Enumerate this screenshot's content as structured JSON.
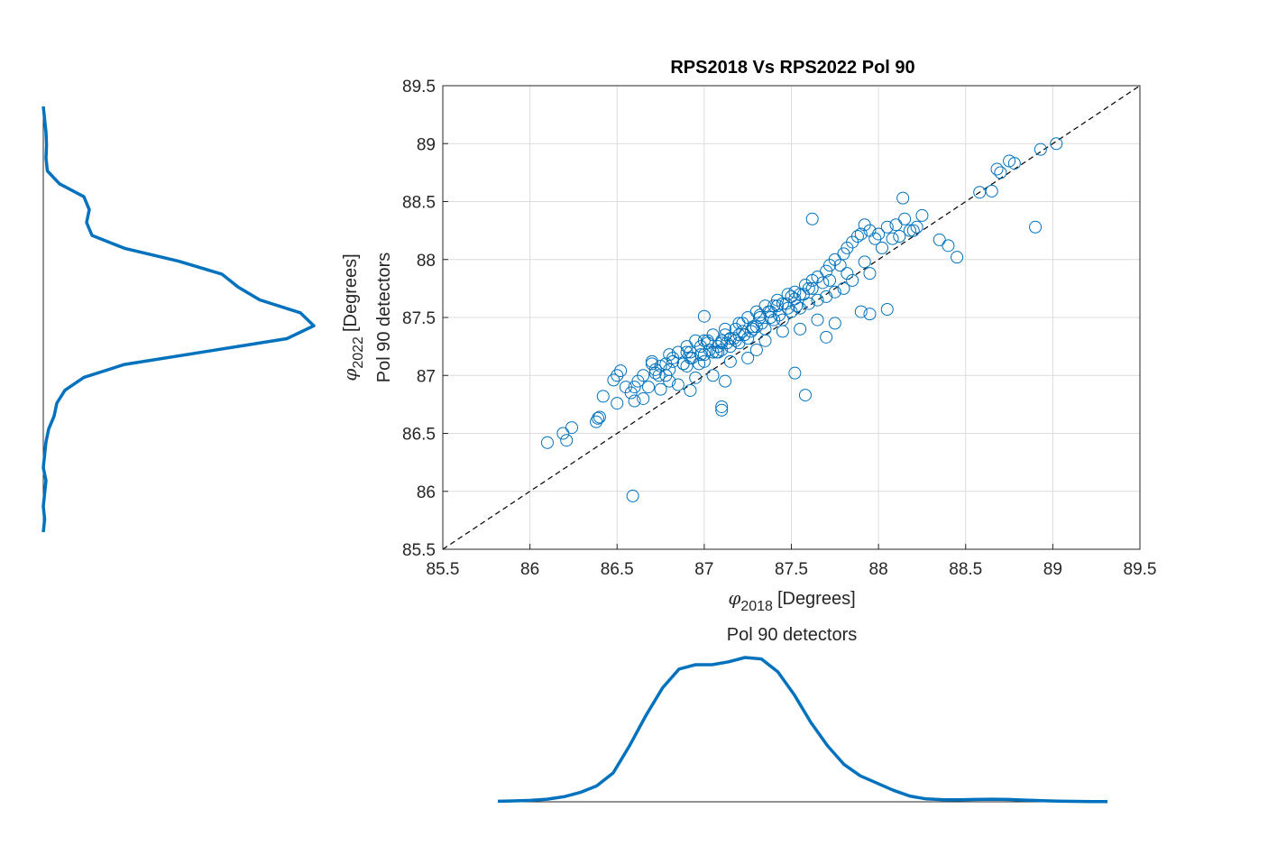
{
  "chart_data": [
    {
      "type": "scatter",
      "title": "RPS2018 Vs RPS2022 Pol 90",
      "xlabel": {
        "symbol": "φ",
        "subscript": "2018",
        "unit": "[Degrees]"
      },
      "ylabel": {
        "symbol": "φ",
        "subscript": "2022",
        "unit": "[Degrees]",
        "line2": "Pol 90 detectors"
      },
      "xlim": [
        85.5,
        89.5
      ],
      "ylim": [
        85.5,
        89.5
      ],
      "xticks": [
        "85.5",
        "86",
        "86.5",
        "87",
        "87.5",
        "88",
        "88.5",
        "89",
        "89.5"
      ],
      "yticks": [
        "85.5",
        "86",
        "86.5",
        "87",
        "87.5",
        "88",
        "88.5",
        "89",
        "89.5"
      ],
      "grid": true,
      "marker": "open-circle",
      "color": "#0072BD",
      "reference_line": {
        "style": "dashed",
        "color": "#000000",
        "x": [
          85.5,
          89.5
        ],
        "y": [
          85.5,
          89.5
        ]
      },
      "points_x": [
        86.1,
        86.19,
        86.21,
        86.24,
        86.38,
        86.39,
        86.4,
        86.42,
        86.48,
        86.5,
        86.5,
        86.52,
        86.55,
        86.58,
        86.6,
        86.62,
        86.65,
        86.68,
        86.7,
        86.72,
        86.74,
        86.75,
        86.78,
        86.8,
        86.82,
        86.85,
        86.88,
        86.9,
        86.92,
        86.95,
        86.98,
        87.0,
        87.02,
        87.05,
        87.08,
        87.1,
        87.12,
        87.15,
        87.18,
        87.2,
        87.22,
        87.25,
        87.28,
        87.3,
        87.32,
        87.35,
        87.38,
        87.4,
        87.42,
        87.45,
        87.48,
        87.5,
        87.52,
        87.55,
        87.58,
        87.6,
        87.62,
        87.65,
        87.68,
        87.7,
        87.72,
        87.75,
        87.78,
        87.8,
        87.82,
        87.85,
        87.88,
        87.9,
        87.92,
        87.95,
        87.98,
        88.0,
        88.05,
        88.1,
        88.15,
        88.2,
        88.25,
        88.35,
        88.4,
        88.45,
        88.58,
        88.65,
        88.68,
        88.7,
        88.75,
        88.78,
        88.9,
        88.93,
        89.02,
        86.59,
        87.1,
        87.1,
        87.12,
        87.52,
        87.58,
        87.55,
        87.9,
        87.95,
        88.05,
        88.14,
        87.62,
        86.92,
        87.0,
        86.8,
        87.45,
        87.65,
        87.7,
        87.75,
        87.35,
        87.25,
        87.15,
        87.05,
        86.95,
        86.85,
        86.75,
        86.65,
        86.6,
        86.7,
        86.8,
        86.9,
        87.0,
        87.1,
        87.2,
        87.3,
        87.4,
        87.5,
        87.6,
        87.7,
        87.8,
        87.3,
        87.2,
        87.1,
        87.0,
        86.9,
        87.05,
        87.15,
        87.25,
        87.35,
        87.45,
        87.55,
        87.65,
        87.75,
        87.85,
        87.95,
        88.02,
        88.08,
        88.12,
        88.18,
        88.22,
        87.48,
        87.38,
        87.28,
        87.18,
        87.08,
        86.98,
        86.88,
        86.78,
        86.72,
        86.82,
        86.92,
        87.02,
        87.12,
        87.22,
        87.32,
        87.42,
        87.52,
        87.62,
        87.72,
        87.82,
        87.92,
        87.33,
        87.43,
        87.53,
        87.23,
        87.13,
        87.03,
        86.93,
        87.37,
        87.47,
        87.57,
        87.27,
        87.17,
        87.07,
        86.97
      ],
      "points_y": [
        86.42,
        86.5,
        86.44,
        86.55,
        86.6,
        86.63,
        86.64,
        86.82,
        86.96,
        86.76,
        87.0,
        87.04,
        86.9,
        86.85,
        86.78,
        86.95,
        87.0,
        86.9,
        87.1,
        87.05,
        87.0,
        87.08,
        87.1,
        87.05,
        87.15,
        87.2,
        87.1,
        87.2,
        87.15,
        87.3,
        87.25,
        87.3,
        87.28,
        87.35,
        87.2,
        87.3,
        87.4,
        87.32,
        87.4,
        87.45,
        87.38,
        87.5,
        87.42,
        87.55,
        87.5,
        87.6,
        87.55,
        87.6,
        87.65,
        87.62,
        87.7,
        87.68,
        87.72,
        87.7,
        87.78,
        87.75,
        87.82,
        87.85,
        87.8,
        87.9,
        87.95,
        88.0,
        87.95,
        88.05,
        88.1,
        88.15,
        88.2,
        88.22,
        88.3,
        88.25,
        88.18,
        88.22,
        88.28,
        88.3,
        88.35,
        88.25,
        88.38,
        88.17,
        88.12,
        88.02,
        88.58,
        88.59,
        88.78,
        88.75,
        88.85,
        88.83,
        88.28,
        88.95,
        89.0,
        85.96,
        86.7,
        86.73,
        86.95,
        87.02,
        86.83,
        87.4,
        87.55,
        87.53,
        87.57,
        88.53,
        88.35,
        86.87,
        87.51,
        86.95,
        87.38,
        87.48,
        87.33,
        87.45,
        87.3,
        87.15,
        87.12,
        87.0,
        86.98,
        86.92,
        86.88,
        86.8,
        86.9,
        87.12,
        87.18,
        87.25,
        87.18,
        87.28,
        87.35,
        87.42,
        87.48,
        87.55,
        87.62,
        87.68,
        87.75,
        87.22,
        87.28,
        87.22,
        87.12,
        87.08,
        87.2,
        87.25,
        87.32,
        87.4,
        87.48,
        87.58,
        87.65,
        87.72,
        87.82,
        87.88,
        88.1,
        88.18,
        88.2,
        88.25,
        88.28,
        87.58,
        87.5,
        87.4,
        87.3,
        87.25,
        87.18,
        87.1,
        87.0,
        87.02,
        87.12,
        87.2,
        87.3,
        87.35,
        87.45,
        87.52,
        87.6,
        87.66,
        87.75,
        87.82,
        87.88,
        87.98,
        87.45,
        87.52,
        87.6,
        87.35,
        87.28,
        87.22,
        87.15,
        87.55,
        87.62,
        87.7,
        87.38,
        87.32,
        87.2,
        87.1
      ]
    },
    {
      "type": "line",
      "title": "Pol 90 detectors",
      "subtype": "density",
      "color": "#0072BD",
      "values": [
        0.004,
        0.006,
        0.01,
        0.018,
        0.035,
        0.065,
        0.11,
        0.2,
        0.39,
        0.6,
        0.79,
        0.92,
        0.95,
        0.95,
        0.97,
        1.0,
        0.99,
        0.9,
        0.74,
        0.55,
        0.39,
        0.26,
        0.18,
        0.13,
        0.08,
        0.04,
        0.02,
        0.015,
        0.014,
        0.016,
        0.018,
        0.016,
        0.012,
        0.008,
        0.005,
        0.003,
        0.002,
        0.002
      ]
    },
    {
      "type": "line",
      "subtype": "density-vertical",
      "color": "#0072BD",
      "values": [
        0.0,
        0.005,
        0.01,
        0.012,
        0.01,
        0.015,
        0.06,
        0.15,
        0.17,
        0.16,
        0.18,
        0.3,
        0.5,
        0.66,
        0.72,
        0.8,
        0.95,
        1.0,
        0.9,
        0.6,
        0.3,
        0.15,
        0.08,
        0.05,
        0.04,
        0.02,
        0.01,
        0.005,
        0.0,
        0.01,
        0.005,
        0.0,
        0.005,
        0.0
      ]
    }
  ]
}
